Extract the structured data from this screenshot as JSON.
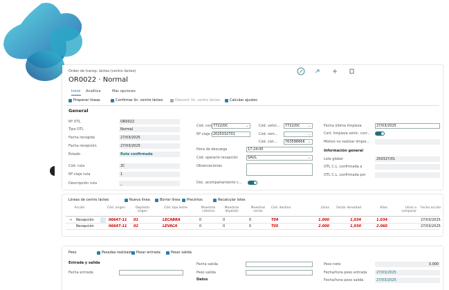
{
  "header": {
    "breadcrumb": "Orden de transp. lácteo (centro lácteo)",
    "title": "OR0022 · Normal"
  },
  "tabs": [
    "Inicio",
    "Analítica",
    "Más opciones"
  ],
  "actions": [
    "Proponer líneas",
    "Confirmar lín. centro lácteo",
    "Desconf. lín. centro lácteo",
    "Calcular ajustes"
  ],
  "general": {
    "title": "General",
    "left": [
      {
        "label": "Nº OTL",
        "value": "OR0022"
      },
      {
        "label": "Tipo OTL",
        "value": "Normal"
      },
      {
        "label": "Fecha recogida",
        "value": "27/03/2025"
      },
      {
        "label": "Fecha recepción",
        "value": "27/03/2025"
      },
      {
        "label": "Estado",
        "value": "Ruta confirmada"
      },
      {
        "label": "Cód. ruta",
        "value": "2C"
      },
      {
        "label": "Nº viaje ruta",
        "value": "1"
      },
      {
        "label": "Descripción ruta",
        "value": "_"
      }
    ],
    "middle": [
      {
        "label": "Cód. corg...",
        "value": "7722/DC"
      },
      {
        "label": "Nº viaje c...",
        "value": "2025032701"
      },
      {
        "label": "Hora de descarga",
        "value": "17:24:00"
      },
      {
        "label": "Cód. operario recepción",
        "value": "SAUL"
      },
      {
        "label": "Observaciones"
      },
      {
        "label": "Doc. acompañamiento c...",
        "toggle": true
      }
    ],
    "vehicle": [
      {
        "label": "Cód. vehíc...",
        "value": "7722/DC"
      },
      {
        "label": "Cód. rem..."
      },
      {
        "label": "Cód. cist...",
        "value": "76358866K"
      }
    ],
    "right": [
      {
        "label": "Fecha última limpieza",
        "value": "27/03/2025"
      },
      {
        "label": "Cert. limpieza vehíc. corr...",
        "toggle": true
      },
      {
        "label": "Motivo no realizar limpie..."
      }
    ],
    "info_title": "Información general",
    "info": [
      {
        "label": "Lote global",
        "value": "250327/01"
      },
      {
        "label": "OTL C.L. confirmada a"
      },
      {
        "label": "OTL C.L. confirmada por"
      }
    ]
  },
  "lines": {
    "title": "Líneas de centro lácteo",
    "actions": [
      "Nueva línea",
      "Borrar línea",
      "Precintos",
      "Recalcular lotes"
    ],
    "columns": [
      "Acción",
      "Cód. origen",
      "Depósito origen",
      "Cód. tipo leche",
      "Muestras cisterna",
      "Muestras depósito",
      "Muestras varias",
      "Cód. destino",
      "Litros",
      "Factor densidad",
      "Kilos",
      "Litros a comparar",
      "Fecha acción"
    ],
    "rows": [
      [
        "Recepción",
        "06647-11",
        "01",
        "LECABRA",
        "0",
        "0",
        "0",
        "T04",
        "1.000",
        "1,034",
        "1.034",
        null,
        "27/03/2025"
      ],
      [
        "Recepción",
        "06647-11",
        "02",
        "LEVACA",
        "0",
        "0",
        "0",
        "T05",
        "2.000",
        "1,030",
        "2.060",
        null,
        "27/03/2025"
      ]
    ]
  },
  "weight": {
    "title": "Peso",
    "actions": [
      "Pesadas realizadas",
      "Pesar entrada",
      "Pesar salida"
    ],
    "section": "Entrada y salida",
    "left": [
      {
        "label": "Fecha entrada"
      }
    ],
    "middle": [
      {
        "label": "Fecha salida"
      },
      {
        "label": "Peso salida"
      }
    ],
    "data_title": "Datos",
    "right": [
      {
        "label": "Peso neto",
        "value": "3.000"
      },
      {
        "label": "Fecha/hora peso entrada",
        "value": "27/03/2025"
      },
      {
        "label": "Fecha/hora peso salida",
        "value": "27/03/2025"
      }
    ]
  }
}
